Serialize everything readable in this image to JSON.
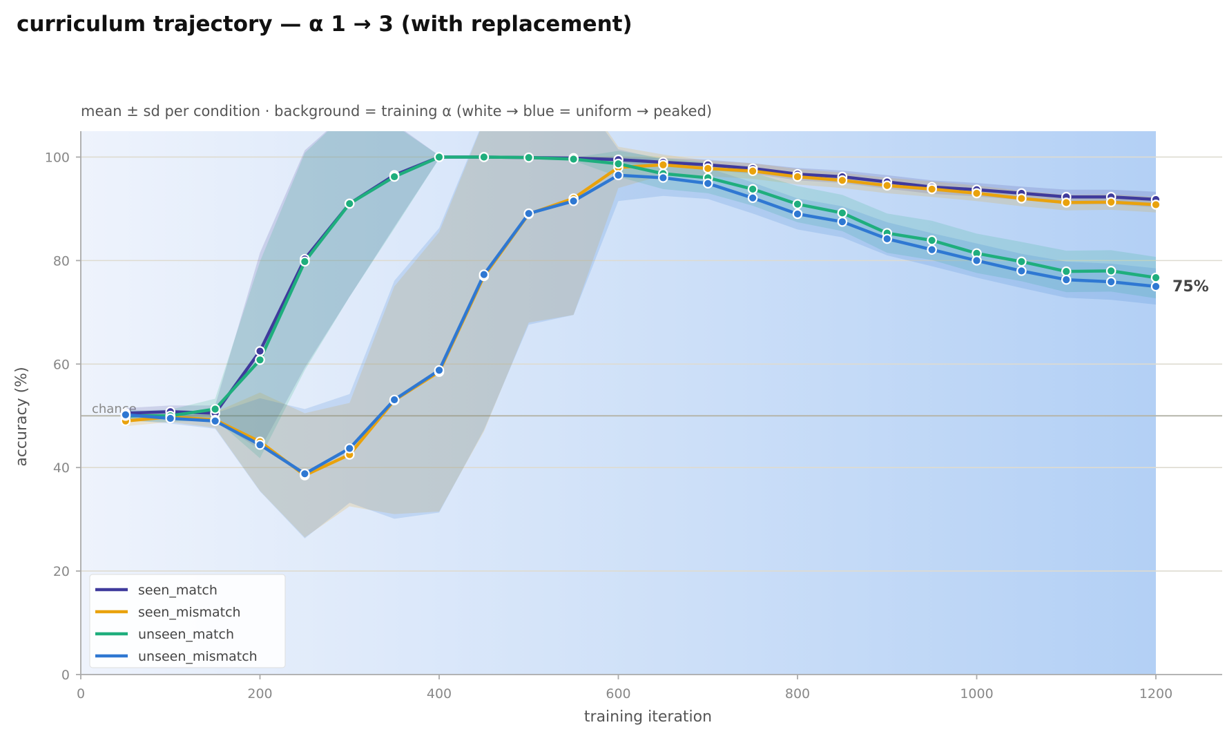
{
  "chart_data": {
    "type": "line",
    "title": "curriculum trajectory — α 1 → 3 (with replacement)",
    "subtitle": "mean ± sd per condition · background = training α (white → blue = uniform → peaked)",
    "xlabel": "training iteration",
    "ylabel": "accuracy (%)",
    "xlim": [
      0,
      1270
    ],
    "ylim": [
      0,
      105
    ],
    "xticks": [
      0,
      200,
      400,
      600,
      800,
      1000,
      1200
    ],
    "yticks": [
      0,
      20,
      40,
      60,
      80,
      100
    ],
    "grid": "horizontal",
    "legend_position": "lower-left",
    "background_gradient": {
      "x_start": 0,
      "x_end": 1200,
      "from": "#eef3fc",
      "to": "#b3d0f5"
    },
    "chance_line": {
      "y": 50,
      "label": "chance"
    },
    "end_label": "75%",
    "x": [
      50,
      100,
      150,
      200,
      250,
      300,
      350,
      400,
      450,
      500,
      550,
      600,
      650,
      700,
      750,
      800,
      850,
      900,
      950,
      1000,
      1050,
      1100,
      1150,
      1200
    ],
    "series": [
      {
        "name": "seen_match",
        "color": "#3f3a9c",
        "values": [
          50.5,
          50.8,
          50.5,
          62.5,
          80.3,
          91.0,
          96.5,
          100.0,
          100.0,
          99.9,
          99.8,
          99.5,
          99.0,
          98.5,
          97.8,
          96.7,
          96.2,
          95.2,
          94.2,
          93.7,
          93.0,
          92.3,
          92.3,
          91.8
        ],
        "sd": [
          1.0,
          1.2,
          1.5,
          19.0,
          21.0,
          18.0,
          10.0,
          0.3,
          0.2,
          0.2,
          0.2,
          0.6,
          0.8,
          1.0,
          1.0,
          1.2,
          1.2,
          1.3,
          1.3,
          1.3,
          1.3,
          1.4,
          1.4,
          1.5
        ]
      },
      {
        "name": "seen_mismatch",
        "color": "#e9a20d",
        "values": [
          49.0,
          49.8,
          49.2,
          45.0,
          38.5,
          42.5,
          53.0,
          58.5,
          77.0,
          89.0,
          92.0,
          98.0,
          98.5,
          97.8,
          97.3,
          96.2,
          95.5,
          94.5,
          93.8,
          93.0,
          92.0,
          91.2,
          91.3,
          90.8
        ],
        "sd": [
          1.0,
          1.0,
          1.5,
          9.5,
          12.0,
          10.0,
          22.0,
          27.0,
          30.0,
          21.0,
          22.5,
          4.0,
          2.0,
          1.5,
          1.5,
          1.5,
          1.5,
          1.5,
          1.5,
          1.5,
          1.5,
          1.5,
          1.5,
          1.5
        ]
      },
      {
        "name": "unseen_match",
        "color": "#1fae7d",
        "values": [
          50.0,
          50.0,
          51.3,
          60.8,
          79.8,
          91.0,
          96.2,
          100.0,
          100.0,
          99.9,
          99.6,
          98.7,
          96.8,
          96.0,
          93.8,
          90.9,
          89.2,
          85.3,
          83.9,
          81.4,
          79.8,
          77.9,
          78.0,
          76.7
        ],
        "sd": [
          1.0,
          1.2,
          2.0,
          19.0,
          21.0,
          18.0,
          10.0,
          0.3,
          0.2,
          0.2,
          0.3,
          2.5,
          3.0,
          3.0,
          3.2,
          3.5,
          3.5,
          3.8,
          3.8,
          3.8,
          3.8,
          4.0,
          4.0,
          4.0
        ]
      },
      {
        "name": "unseen_mismatch",
        "color": "#2f78d2",
        "values": [
          50.2,
          49.5,
          49.0,
          44.4,
          38.8,
          43.7,
          53.1,
          58.8,
          77.3,
          89.1,
          91.5,
          96.5,
          96.0,
          94.9,
          92.1,
          89.0,
          87.5,
          84.2,
          82.1,
          80.0,
          78.0,
          76.3,
          75.9,
          75.0
        ],
        "sd": [
          1.0,
          1.0,
          1.5,
          9.0,
          12.5,
          10.5,
          23.0,
          27.5,
          30.0,
          21.5,
          22.0,
          5.0,
          3.5,
          3.0,
          3.0,
          3.0,
          3.0,
          3.2,
          3.2,
          3.3,
          3.3,
          3.5,
          3.5,
          3.5
        ]
      }
    ]
  }
}
